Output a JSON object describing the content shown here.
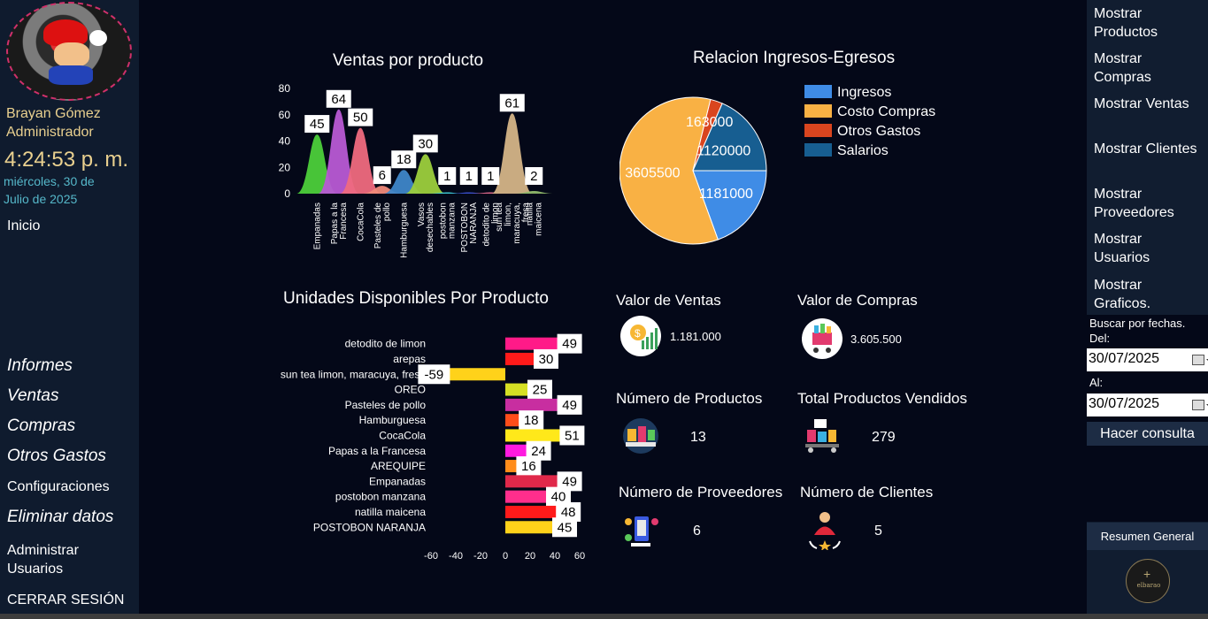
{
  "user": {
    "name": "Brayan Gómez",
    "role": "Administrador",
    "time": "4:24:53 p. m.",
    "date": "miércoles, 30 de Julio de 2025"
  },
  "sidebar": {
    "inicio": "Inicio",
    "informes": "Informes",
    "ventas": "Ventas",
    "compras": "Compras",
    "otros_gastos": "Otros Gastos",
    "configuraciones": "Configuraciones",
    "eliminar_datos": "Eliminar datos",
    "administrar_usuarios": "Administrar Usuarios",
    "cerrar_sesion": "CERRAR SESIÓN"
  },
  "rightbar": {
    "items": [
      "Mostrar Productos",
      "Mostrar Compras",
      "Mostrar Ventas",
      "Mostrar Clientes",
      "Mostrar Proveedores",
      "Mostrar Usuarios",
      "Mostrar Graficos."
    ],
    "search_label": "Buscar por fechas.",
    "from_label": "Del:",
    "from_value": "30/07/2025",
    "to_label": "Al:",
    "to_value": "30/07/2025",
    "query_button": "Hacer consulta",
    "summary_button": "Resumen General",
    "logo_text": "elbarao"
  },
  "kpis": {
    "valor_ventas": {
      "title": "Valor de Ventas",
      "value": "1.181.000",
      "icon": "money-growth-icon"
    },
    "valor_compras": {
      "title": "Valor de Compras",
      "value": "3.605.500",
      "icon": "shopping-cart-icon"
    },
    "num_productos": {
      "title": "Número de Productos",
      "value": "13",
      "icon": "products-icon"
    },
    "total_vendidos": {
      "title": "Total Productos Vendidos",
      "value": "279",
      "icon": "delivery-icon"
    },
    "num_proveedores": {
      "title": "Número de Proveedores",
      "value": "6",
      "icon": "supplier-icon"
    },
    "num_clientes": {
      "title": "Número de Clientes",
      "value": "5",
      "icon": "customer-icon"
    }
  },
  "chart_data": [
    {
      "type": "area",
      "title": "Ventas por producto",
      "categories": [
        "Empanadas",
        "Papas a la Francesa",
        "CocaCola",
        "Pasteles de pollo",
        "Hamburguesa",
        "Vasos desechables",
        "postobon manzana",
        "POSTOBON NARANJA",
        "detodito de limon",
        "sun tea limon, maracuya, fresa",
        "natilla maicena"
      ],
      "values": [
        45,
        64,
        50,
        6,
        18,
        30,
        1,
        1,
        1,
        61,
        2
      ],
      "colors": [
        "#4ccf3a",
        "#b85ad4",
        "#ef6a7e",
        "#f08a7a",
        "#3e86c8",
        "#9ccf3c",
        "#3ecfd8",
        "#3a50d0",
        "#e56a8e",
        "#d4b487",
        "#8fb86a"
      ],
      "ylim": [
        0,
        80
      ],
      "yticks": [
        0,
        20,
        40,
        60,
        80
      ]
    },
    {
      "type": "pie",
      "title": "Relacion Ingresos-Egresos",
      "labels": [
        "Ingresos",
        "Costo Compras",
        "Otros Gastos",
        "Salarios"
      ],
      "values": [
        1181000,
        3605500,
        163000,
        1120000
      ],
      "colors": [
        "#3f8ce6",
        "#f9b144",
        "#d9451f",
        "#175e91"
      ],
      "legend": "right"
    },
    {
      "type": "bar",
      "orientation": "horizontal",
      "title": "Unidades Disponibles Por Producto",
      "categories": [
        "detodito de limon",
        "arepas",
        "sun tea limon, maracuya, fresa",
        "OREO",
        "Pasteles de pollo",
        "Hamburguesa",
        "CocaCola",
        "Papas a la Francesa",
        "AREQUIPE",
        "Empanadas",
        "postobon manzana",
        "natilla maicena",
        "POSTOBON NARANJA"
      ],
      "values": [
        49,
        30,
        -59,
        25,
        49,
        18,
        51,
        24,
        16,
        49,
        40,
        48,
        45
      ],
      "colors": [
        "#ff1a88",
        "#ff1a1a",
        "#ffd21a",
        "#d6e024",
        "#c82ea0",
        "#ff4d1a",
        "#ffe81a",
        "#ff1ae0",
        "#ff8c1a",
        "#e0284a",
        "#ff2e8c",
        "#ff1a1a",
        "#ffd21a"
      ],
      "xlim": [
        -60,
        60
      ],
      "xticks": [
        -60,
        -40,
        -20,
        0,
        20,
        40,
        60
      ]
    }
  ]
}
